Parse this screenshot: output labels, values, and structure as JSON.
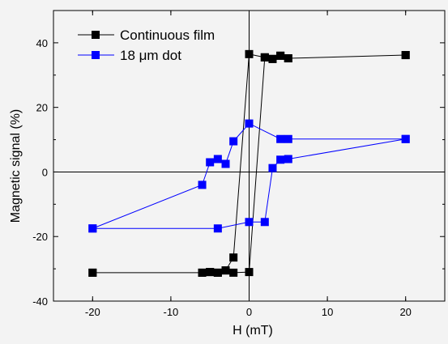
{
  "chart_data": {
    "type": "scatter",
    "xlabel": "H (mT)",
    "ylabel": "Magnetic signal (%)",
    "xlim": [
      -25,
      25
    ],
    "ylim": [
      -40,
      50
    ],
    "x_ticks": [
      -20,
      -10,
      0,
      10,
      20
    ],
    "y_ticks": [
      -40,
      -20,
      0,
      20,
      40
    ],
    "x_tick_labels": [
      "-20",
      "-10",
      "0",
      "10",
      "20"
    ],
    "y_tick_labels": [
      "-40",
      "-20",
      "0",
      "20",
      "40"
    ],
    "zero_lines": true,
    "grid": false,
    "legend_position": "top-left",
    "series": [
      {
        "name": "Continuous film",
        "color": "#000000",
        "marker": "square",
        "x": [
          -20,
          -6,
          -5,
          -4,
          -3,
          -2,
          0,
          2,
          3,
          4,
          5,
          20,
          20,
          5,
          4,
          3,
          2,
          0,
          -2,
          -3,
          -4,
          -5,
          -6,
          -20
        ],
        "y": [
          -31.2,
          -31.2,
          -31,
          -31.2,
          -30.5,
          -26.5,
          36.5,
          35.5,
          35,
          36,
          35.2,
          36.2,
          36.2,
          35.2,
          36,
          35,
          35.5,
          -31,
          -31.2,
          -30.5,
          -31.2,
          -31,
          -31.2,
          -31.2
        ]
      },
      {
        "name": "18 μm dot",
        "color": "#0000ff",
        "marker": "square",
        "x": [
          -20,
          -6,
          -5,
          -4,
          -3,
          -2,
          0,
          4,
          5,
          20,
          20,
          5,
          4,
          3,
          2,
          0,
          -4,
          -20
        ],
        "y": [
          -17.5,
          -4,
          3,
          4,
          2.5,
          9.5,
          15,
          10.2,
          10.2,
          10.2,
          10.2,
          4,
          3.8,
          1.2,
          -15.5,
          -15.5,
          -17.5,
          -17.5
        ]
      }
    ]
  }
}
